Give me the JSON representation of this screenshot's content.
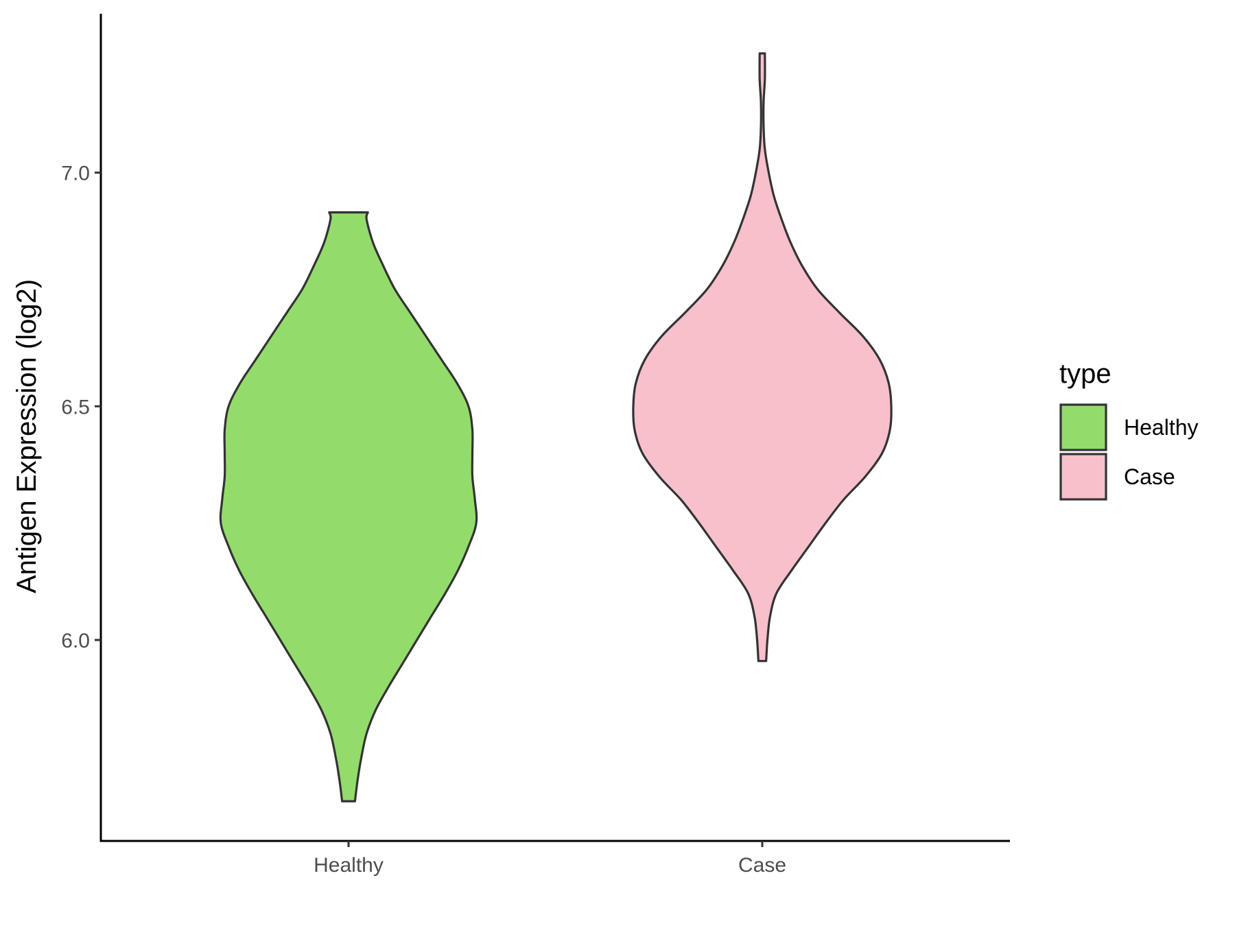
{
  "chart_data": {
    "type": "violin",
    "title": "",
    "xlabel": "",
    "ylabel": "Antigen Expression (log2)",
    "categories": [
      "Healthy",
      "Case"
    ],
    "ylim": [
      5.57,
      7.34
    ],
    "yticks": [
      6.0,
      6.5,
      7.0
    ],
    "ytick_labels": [
      "6.0",
      "6.5",
      "7.0"
    ],
    "grid": false,
    "outline_color": "#333333",
    "series": [
      {
        "name": "Healthy",
        "color": "#93dc6b",
        "min": 5.655,
        "max": 6.915,
        "density_profile": [
          [
            5.655,
            0.05
          ],
          [
            5.7,
            0.07
          ],
          [
            5.75,
            0.1
          ],
          [
            5.8,
            0.14
          ],
          [
            5.85,
            0.21
          ],
          [
            5.9,
            0.31
          ],
          [
            5.95,
            0.42
          ],
          [
            6.0,
            0.53
          ],
          [
            6.05,
            0.64
          ],
          [
            6.1,
            0.75
          ],
          [
            6.15,
            0.85
          ],
          [
            6.2,
            0.93
          ],
          [
            6.25,
            0.99
          ],
          [
            6.3,
            0.98
          ],
          [
            6.35,
            0.96
          ],
          [
            6.4,
            0.96
          ],
          [
            6.45,
            0.96
          ],
          [
            6.5,
            0.93
          ],
          [
            6.55,
            0.84
          ],
          [
            6.6,
            0.72
          ],
          [
            6.65,
            0.6
          ],
          [
            6.7,
            0.48
          ],
          [
            6.75,
            0.36
          ],
          [
            6.8,
            0.27
          ],
          [
            6.85,
            0.19
          ],
          [
            6.9,
            0.14
          ],
          [
            6.915,
            0.15
          ]
        ]
      },
      {
        "name": "Case",
        "color": "#f7c0cb",
        "min": 5.955,
        "max": 7.255,
        "density_profile": [
          [
            5.955,
            0.03
          ],
          [
            6.0,
            0.04
          ],
          [
            6.05,
            0.06
          ],
          [
            6.1,
            0.11
          ],
          [
            6.15,
            0.23
          ],
          [
            6.2,
            0.36
          ],
          [
            6.25,
            0.49
          ],
          [
            6.3,
            0.63
          ],
          [
            6.35,
            0.8
          ],
          [
            6.4,
            0.93
          ],
          [
            6.45,
            0.99
          ],
          [
            6.5,
            1.0
          ],
          [
            6.55,
            0.98
          ],
          [
            6.6,
            0.91
          ],
          [
            6.65,
            0.78
          ],
          [
            6.7,
            0.6
          ],
          [
            6.75,
            0.43
          ],
          [
            6.8,
            0.31
          ],
          [
            6.85,
            0.22
          ],
          [
            6.9,
            0.15
          ],
          [
            6.95,
            0.09
          ],
          [
            7.0,
            0.05
          ],
          [
            7.05,
            0.02
          ],
          [
            7.1,
            0.01
          ],
          [
            7.15,
            0.01
          ],
          [
            7.2,
            0.02
          ],
          [
            7.255,
            0.02
          ]
        ]
      }
    ],
    "legend": {
      "title": "type",
      "position": "right",
      "entries": [
        {
          "label": "Healthy",
          "color": "#93dc6b"
        },
        {
          "label": "Case",
          "color": "#f7c0cb"
        }
      ]
    }
  }
}
